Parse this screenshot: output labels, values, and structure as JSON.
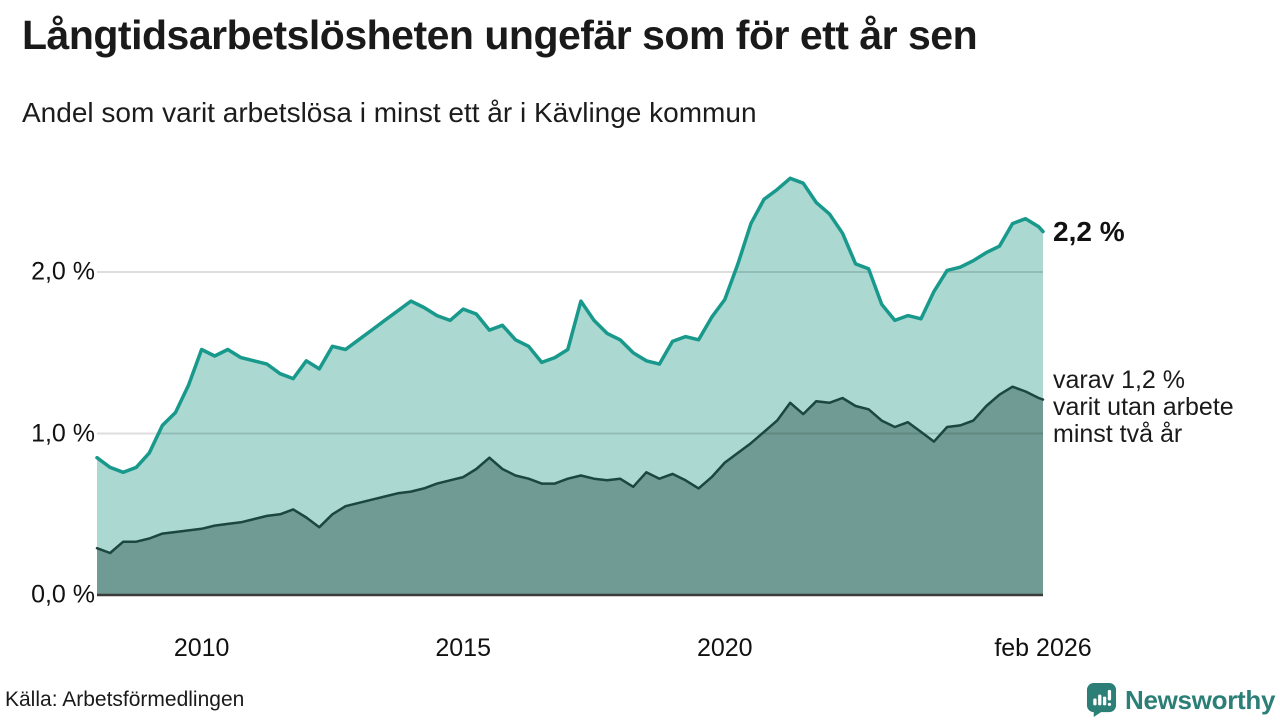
{
  "header": {
    "title": "Långtidsarbetslösheten ungefär som för ett år sen",
    "subtitle": "Andel som varit arbetslösa i minst ett år i Kävlinge kommun"
  },
  "chart_data": {
    "type": "area",
    "title": "Långtidsarbetslösheten ungefär som för ett år sen",
    "subtitle": "Andel som varit arbetslösa i minst ett år i Kävlinge kommun",
    "xlabel": "",
    "ylabel": "",
    "x": [
      2008,
      2008.25,
      2008.5,
      2008.75,
      2009,
      2009.25,
      2009.5,
      2009.75,
      2010,
      2010.25,
      2010.5,
      2010.75,
      2011,
      2011.25,
      2011.5,
      2011.75,
      2012,
      2012.25,
      2012.5,
      2012.75,
      2013,
      2013.25,
      2013.5,
      2013.75,
      2014,
      2014.25,
      2014.5,
      2014.75,
      2015,
      2015.25,
      2015.5,
      2015.75,
      2016,
      2016.25,
      2016.5,
      2016.75,
      2017,
      2017.25,
      2017.5,
      2017.75,
      2018,
      2018.25,
      2018.5,
      2018.75,
      2019,
      2019.25,
      2019.5,
      2019.75,
      2020,
      2020.25,
      2020.5,
      2020.75,
      2021,
      2021.25,
      2021.5,
      2021.75,
      2022,
      2022.25,
      2022.5,
      2022.75,
      2023,
      2023.25,
      2023.5,
      2023.75,
      2024,
      2024.25,
      2024.5,
      2024.75,
      2025,
      2025.25,
      2025.5,
      2025.75,
      2026,
      2026.083
    ],
    "series": [
      {
        "name": "Andel arbetslösa minst ett år",
        "values": [
          0.85,
          0.79,
          0.76,
          0.79,
          0.88,
          1.05,
          1.13,
          1.3,
          1.52,
          1.48,
          1.52,
          1.47,
          1.45,
          1.43,
          1.37,
          1.34,
          1.45,
          1.4,
          1.54,
          1.52,
          1.58,
          1.64,
          1.7,
          1.76,
          1.82,
          1.78,
          1.73,
          1.7,
          1.77,
          1.74,
          1.64,
          1.67,
          1.58,
          1.54,
          1.44,
          1.47,
          1.52,
          1.82,
          1.7,
          1.62,
          1.58,
          1.5,
          1.45,
          1.43,
          1.57,
          1.6,
          1.58,
          1.72,
          1.83,
          2.05,
          2.3,
          2.45,
          2.51,
          2.58,
          2.55,
          2.43,
          2.36,
          2.24,
          2.05,
          2.02,
          1.8,
          1.7,
          1.73,
          1.71,
          1.88,
          2.01,
          2.03,
          2.07,
          2.12,
          2.16,
          2.3,
          2.33,
          2.28,
          2.25
        ],
        "line_color": "#18998c",
        "fill_color": "#abd8d1",
        "line_width": 3.5,
        "end_value_label": "2,2 %"
      },
      {
        "name": "varav utan arbete minst två år",
        "values": [
          0.29,
          0.26,
          0.33,
          0.33,
          0.35,
          0.38,
          0.39,
          0.4,
          0.41,
          0.43,
          0.44,
          0.45,
          0.47,
          0.49,
          0.5,
          0.53,
          0.48,
          0.42,
          0.5,
          0.55,
          0.57,
          0.59,
          0.61,
          0.63,
          0.64,
          0.66,
          0.69,
          0.71,
          0.73,
          0.78,
          0.85,
          0.78,
          0.74,
          0.72,
          0.69,
          0.69,
          0.72,
          0.74,
          0.72,
          0.71,
          0.72,
          0.67,
          0.76,
          0.72,
          0.75,
          0.71,
          0.66,
          0.73,
          0.82,
          0.88,
          0.94,
          1.01,
          1.08,
          1.19,
          1.12,
          1.2,
          1.19,
          1.22,
          1.17,
          1.15,
          1.08,
          1.04,
          1.07,
          1.01,
          0.95,
          1.04,
          1.05,
          1.08,
          1.17,
          1.24,
          1.29,
          1.26,
          1.22,
          1.21
        ],
        "line_color": "#1c4640",
        "fill_color": "#6f9b94",
        "line_width": 2.5,
        "end_value_label": "varav 1,2 %"
      }
    ],
    "xlim": [
      2008,
      2026.083
    ],
    "ylim": [
      0,
      2.75
    ],
    "yticks": [
      {
        "value": 0,
        "label": "0,0 %"
      },
      {
        "value": 1,
        "label": "1,0 %"
      },
      {
        "value": 2,
        "label": "2,0 %"
      }
    ],
    "xticks": [
      {
        "value": 2010,
        "label": "2010"
      },
      {
        "value": 2015,
        "label": "2015"
      },
      {
        "value": 2020,
        "label": "2020"
      },
      {
        "value": 2026.083,
        "label": "feb 2026"
      }
    ],
    "grid": "horizontal",
    "grid_color": "rgba(0,0,0,0.13)",
    "axis_color": "#3b3b3b",
    "legend_position": "end-labels-right"
  },
  "annotations": {
    "total_label": "2,2 %",
    "two_year_lines": [
      "varav 1,2 %",
      "varit utan arbete",
      "minst två år"
    ]
  },
  "source": {
    "text": "Källa: Arbetsförmedlingen"
  },
  "branding": {
    "name": "Newsworthy",
    "color": "#2b7f77"
  }
}
